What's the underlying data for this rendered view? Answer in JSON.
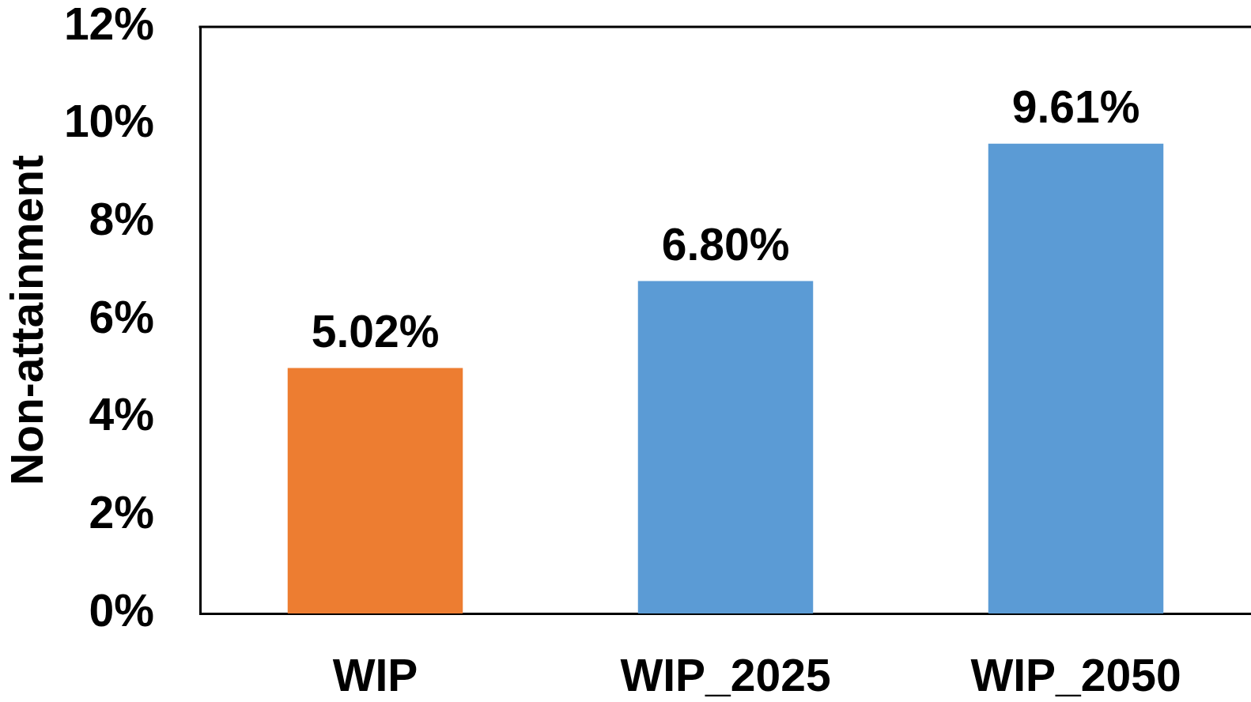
{
  "chart_data": {
    "type": "bar",
    "categories": [
      "WIP",
      "WIP_2025",
      "WIP_2050"
    ],
    "values": [
      5.02,
      6.8,
      9.61
    ],
    "colors": [
      "#ed7d31",
      "#5b9bd5",
      "#5b9bd5"
    ],
    "value_labels": [
      "5.02%",
      "6.80%",
      "9.61%"
    ],
    "ylabel": "Non-attainment",
    "ylim": [
      0,
      12
    ],
    "yticks": [
      {
        "value": 0,
        "label": "0%"
      },
      {
        "value": 2,
        "label": "2%"
      },
      {
        "value": 4,
        "label": "4%"
      },
      {
        "value": 6,
        "label": "6%"
      },
      {
        "value": 8,
        "label": "8%"
      },
      {
        "value": 10,
        "label": "10%"
      },
      {
        "value": 12,
        "label": "12%"
      }
    ]
  }
}
